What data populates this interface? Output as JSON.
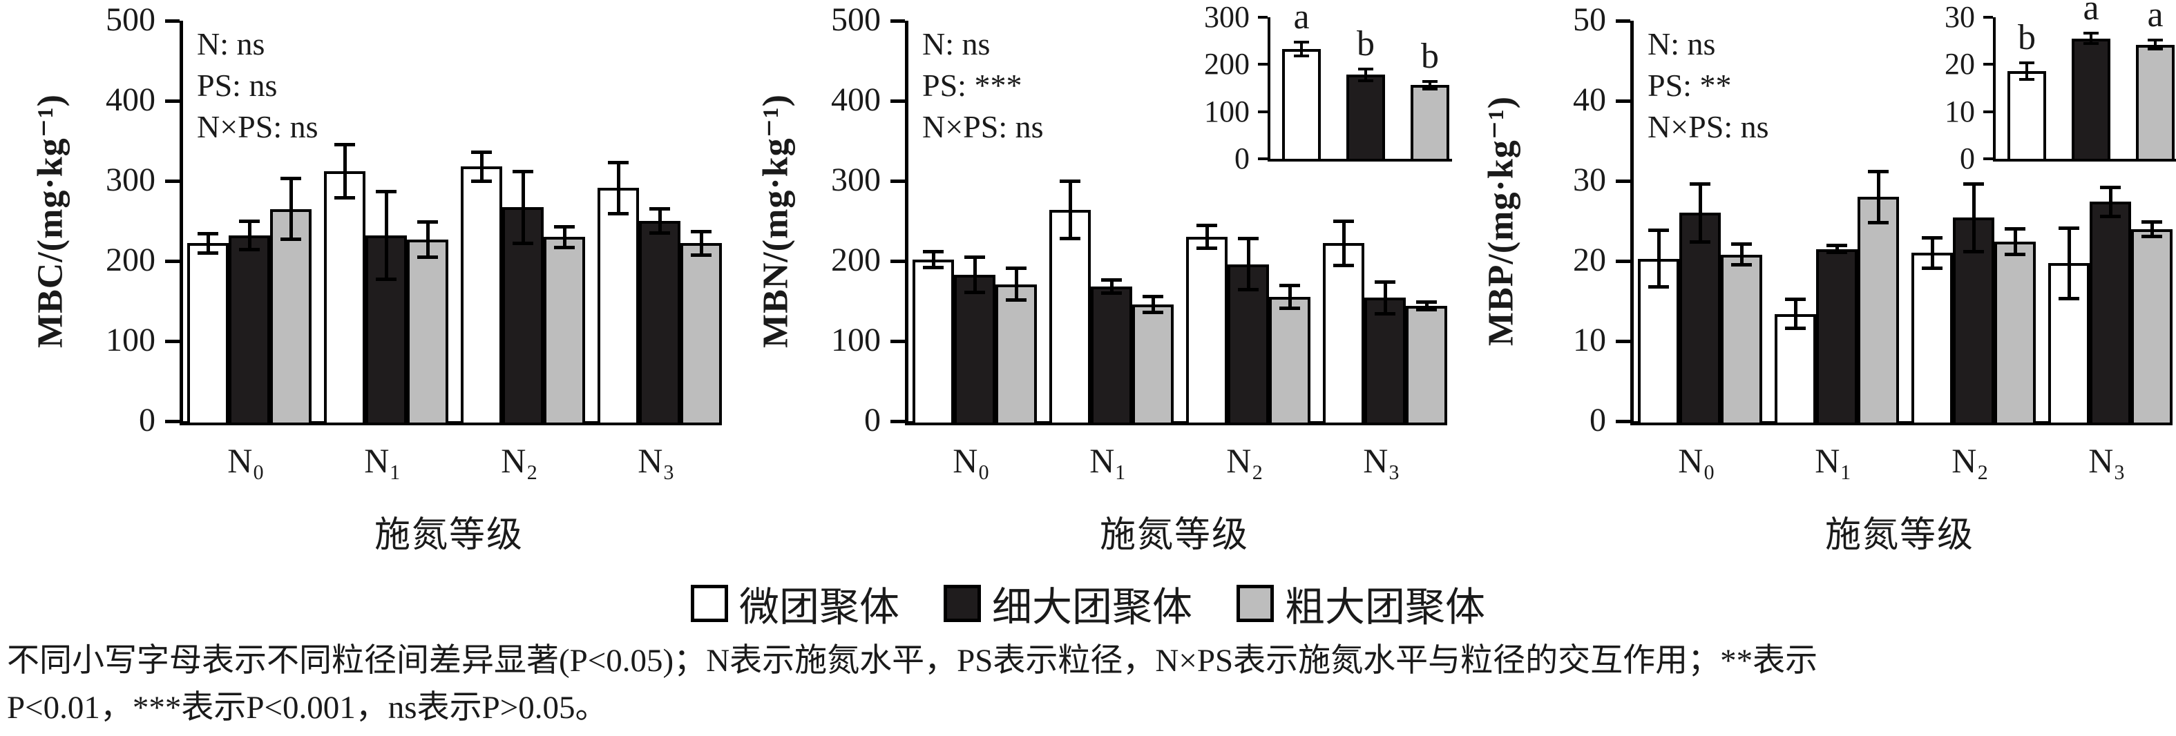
{
  "colors": {
    "bar_white": "#ffffff",
    "bar_black": "#1f1c1d",
    "bar_gray": "#bdbdbd",
    "axis": "#000000",
    "text": "#1a1a1a"
  },
  "legend": {
    "items": [
      {
        "label": "微团聚体",
        "fill": "bar_white"
      },
      {
        "label": "细大团聚体",
        "fill": "bar_black"
      },
      {
        "label": "粗大团聚体",
        "fill": "bar_gray"
      }
    ]
  },
  "caption": {
    "line1": "不同小写字母表示不同粒径间差异显著(P<0.05)；N表示施氮水平，PS表示粒径，N×PS表示施氮水平与粒径的交互作用；**表示",
    "line2": "P<0.01，***表示P<0.001，ns表示P>0.05。"
  },
  "chart_data": [
    {
      "type": "bar",
      "ylabel": "MBC/(mg·kg⁻¹)",
      "xlabel": "施氮等级",
      "categories": [
        "N₀",
        "N₁",
        "N₂",
        "N₃"
      ],
      "ylim": [
        0,
        500
      ],
      "yticks": [
        0,
        100,
        200,
        300,
        400,
        500
      ],
      "grid": false,
      "annotations": [
        "N: ns",
        "PS: ns",
        "N×PS: ns"
      ],
      "series": [
        {
          "name": "微团聚体",
          "fill": "white",
          "values": [
            222,
            312,
            318,
            291
          ],
          "errors": [
            12,
            33,
            18,
            32
          ]
        },
        {
          "name": "细大团聚体",
          "fill": "black",
          "values": [
            232,
            232,
            267,
            250
          ],
          "errors": [
            18,
            55,
            45,
            15
          ]
        },
        {
          "name": "粗大团聚体",
          "fill": "gray",
          "values": [
            265,
            227,
            230,
            222
          ],
          "errors": [
            38,
            22,
            13,
            15
          ]
        }
      ],
      "inset": null
    },
    {
      "type": "bar",
      "ylabel": "MBN/(mg·kg⁻¹)",
      "xlabel": "施氮等级",
      "categories": [
        "N₀",
        "N₁",
        "N₂",
        "N₃"
      ],
      "ylim": [
        0,
        500
      ],
      "yticks": [
        0,
        100,
        200,
        300,
        400,
        500
      ],
      "grid": false,
      "annotations": [
        "N: ns",
        "PS: ***",
        "N×PS: ns"
      ],
      "series": [
        {
          "name": "微团聚体",
          "fill": "white",
          "values": [
            202,
            264,
            230,
            222
          ],
          "errors": [
            10,
            36,
            14,
            28
          ]
        },
        {
          "name": "细大团聚体",
          "fill": "black",
          "values": [
            183,
            168,
            196,
            154
          ],
          "errors": [
            22,
            8,
            32,
            20
          ]
        },
        {
          "name": "粗大团聚体",
          "fill": "gray",
          "values": [
            171,
            146,
            155,
            144
          ],
          "errors": [
            20,
            10,
            14,
            5
          ]
        }
      ],
      "inset": {
        "ylim": [
          0,
          300
        ],
        "yticks": [
          0,
          100,
          200,
          300
        ],
        "bars": [
          {
            "series": "微团聚体",
            "fill": "white",
            "value": 233,
            "error": 15,
            "letter": "a"
          },
          {
            "series": "细大团聚体",
            "fill": "black",
            "value": 178,
            "error": 12,
            "letter": "b"
          },
          {
            "series": "粗大团聚体",
            "fill": "gray",
            "value": 156,
            "error": 8,
            "letter": "b"
          }
        ]
      }
    },
    {
      "type": "bar",
      "ylabel": "MBP/(mg·kg⁻¹)",
      "xlabel": "施氮等级",
      "categories": [
        "N₀",
        "N₁",
        "N₂",
        "N₃"
      ],
      "ylim": [
        0,
        50
      ],
      "yticks": [
        0,
        10,
        20,
        30,
        40,
        50
      ],
      "grid": false,
      "annotations": [
        "N: ns",
        "PS: **",
        "N×PS: ns"
      ],
      "series": [
        {
          "name": "微团聚体",
          "fill": "white",
          "values": [
            20.3,
            13.4,
            21,
            19.7
          ],
          "errors": [
            3.5,
            1.8,
            1.9,
            4.4
          ]
        },
        {
          "name": "细大团聚体",
          "fill": "black",
          "values": [
            26,
            21.5,
            25.4,
            27.4
          ],
          "errors": [
            3.6,
            0.4,
            4.2,
            1.8
          ]
        },
        {
          "name": "粗大团聚体",
          "fill": "gray",
          "values": [
            20.8,
            28,
            22.4,
            24
          ],
          "errors": [
            1.3,
            3.2,
            1.6,
            0.9
          ]
        }
      ],
      "inset": {
        "ylim": [
          0,
          30
        ],
        "yticks": [
          0,
          10,
          20,
          30
        ],
        "bars": [
          {
            "series": "微团聚体",
            "fill": "white",
            "value": 18.6,
            "error": 1.7,
            "letter": "b"
          },
          {
            "series": "细大团聚体",
            "fill": "black",
            "value": 25.5,
            "error": 1.1,
            "letter": "a"
          },
          {
            "series": "粗大团聚体",
            "fill": "gray",
            "value": 24.2,
            "error": 1.0,
            "letter": "a"
          }
        ]
      }
    }
  ]
}
